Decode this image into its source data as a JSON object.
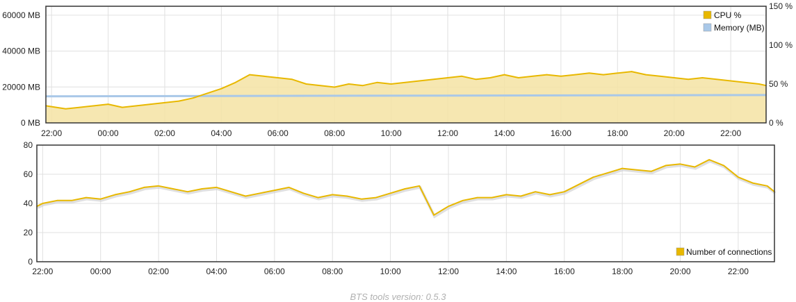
{
  "footer": {
    "text": "BTS tools version: 0.5.3"
  },
  "colors": {
    "cpu": "#e8b800",
    "cpu_fill": "#f5e3a3",
    "memory": "#a9c8e8",
    "grid": "#e0e0e0",
    "frame": "#333333"
  },
  "chart_data": [
    {
      "type": "line",
      "x_tick_labels": [
        "22:00",
        "00:00",
        "02:00",
        "04:00",
        "06:00",
        "08:00",
        "10:00",
        "12:00",
        "14:00",
        "16:00",
        "18:00",
        "20:00",
        "22:00"
      ],
      "y_left_tick_labels": [
        "0 MB",
        "20000 MB",
        "40000 MB",
        "60000 MB"
      ],
      "y_right_tick_labels": [
        "0 %",
        "50 %",
        "100 %",
        "150 %"
      ],
      "y_left_lim": [
        0,
        65000
      ],
      "y_right_lim": [
        0,
        150
      ],
      "x_range_hours": [
        21.8,
        47.25
      ],
      "grid": true,
      "legend_position": "top-right",
      "series": [
        {
          "name": "CPU %",
          "axis": "right",
          "x_hours": [
            21.8,
            22.5,
            23,
            23.5,
            24,
            24.5,
            25,
            25.5,
            26,
            26.5,
            27,
            27.5,
            28,
            28.5,
            29,
            29.5,
            30,
            30.5,
            31,
            31.5,
            32,
            32.5,
            33,
            33.5,
            34,
            34.5,
            35,
            35.5,
            36,
            36.5,
            37,
            37.5,
            38,
            38.5,
            39,
            39.5,
            40,
            40.5,
            41,
            41.5,
            42,
            42.5,
            43,
            43.5,
            44,
            44.5,
            45,
            45.5,
            46,
            46.5,
            47,
            47.25
          ],
          "values": [
            22,
            18,
            20,
            22,
            24,
            20,
            22,
            24,
            26,
            28,
            32,
            38,
            44,
            52,
            62,
            60,
            58,
            56,
            50,
            48,
            46,
            50,
            48,
            52,
            50,
            52,
            54,
            56,
            58,
            60,
            56,
            58,
            62,
            58,
            60,
            62,
            60,
            62,
            64,
            62,
            64,
            66,
            62,
            60,
            58,
            56,
            58,
            56,
            54,
            52,
            50,
            48
          ]
        },
        {
          "name": "Memory (MB)",
          "axis": "left",
          "x_hours": [
            21.8,
            47.25
          ],
          "values": [
            14800,
            15500
          ]
        }
      ]
    },
    {
      "type": "line",
      "x_tick_labels": [
        "22:00",
        "00:00",
        "02:00",
        "04:00",
        "06:00",
        "08:00",
        "10:00",
        "12:00",
        "14:00",
        "16:00",
        "18:00",
        "20:00",
        "22:00"
      ],
      "y_tick_labels": [
        "0",
        "20",
        "40",
        "60",
        "80"
      ],
      "ylim": [
        0,
        80
      ],
      "x_range_hours": [
        21.8,
        47.25
      ],
      "grid": true,
      "legend_position": "bottom-right",
      "series": [
        {
          "name": "Number of connections",
          "x_hours": [
            21.8,
            22,
            22.5,
            23,
            23.5,
            24,
            24.5,
            25,
            25.5,
            26,
            26.5,
            27,
            27.5,
            28,
            28.5,
            29,
            29.5,
            30,
            30.5,
            31,
            31.5,
            32,
            32.5,
            33,
            33.5,
            34,
            34.5,
            35,
            35.5,
            36,
            36.5,
            37,
            37.5,
            38,
            38.5,
            39,
            39.5,
            40,
            40.5,
            41,
            41.5,
            42,
            42.5,
            43,
            43.5,
            44,
            44.5,
            45,
            45.5,
            46,
            46.5,
            47,
            47.25
          ],
          "values": [
            38,
            40,
            42,
            42,
            44,
            43,
            46,
            48,
            51,
            52,
            50,
            48,
            50,
            51,
            48,
            45,
            47,
            49,
            51,
            47,
            44,
            46,
            45,
            43,
            44,
            47,
            50,
            52,
            32,
            38,
            42,
            44,
            44,
            46,
            45,
            48,
            46,
            48,
            53,
            58,
            61,
            64,
            63,
            62,
            66,
            67,
            65,
            70,
            66,
            58,
            54,
            52,
            48
          ]
        }
      ]
    }
  ]
}
